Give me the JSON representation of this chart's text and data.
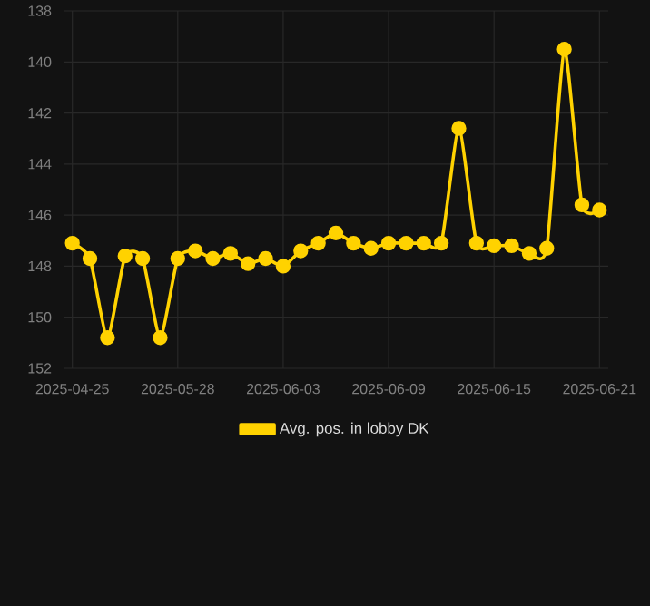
{
  "chart_data": {
    "type": "line",
    "categories": [
      "2025-04-25",
      null,
      null,
      null,
      null,
      null,
      "2025-05-28",
      null,
      null,
      null,
      null,
      null,
      "2025-06-03",
      null,
      null,
      null,
      null,
      null,
      "2025-06-09",
      null,
      null,
      null,
      null,
      null,
      "2025-06-15",
      null,
      null,
      null,
      null,
      null,
      "2025-06-21"
    ],
    "series": [
      {
        "name": "Avg. pos. in lobby DK",
        "color": "#ffd200",
        "values": [
          147.1,
          147.7,
          150.8,
          147.6,
          147.7,
          150.8,
          147.7,
          147.4,
          147.7,
          147.5,
          147.9,
          147.7,
          148.0,
          147.4,
          147.1,
          146.7,
          147.1,
          147.3,
          147.1,
          147.1,
          147.1,
          147.1,
          142.6,
          147.1,
          147.2,
          147.2,
          147.5,
          147.3,
          139.5,
          145.6,
          145.8
        ]
      }
    ],
    "ylim": [
      152,
      138
    ],
    "yticks": [
      138,
      140,
      142,
      144,
      146,
      148,
      150,
      152
    ],
    "grid": true,
    "legend": "bottom",
    "marker": "circle",
    "line_style": "solid"
  }
}
